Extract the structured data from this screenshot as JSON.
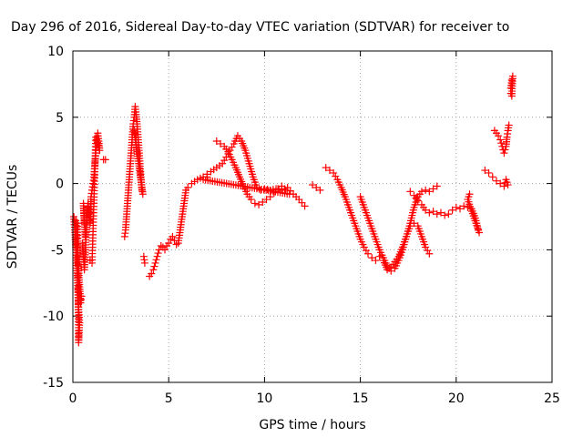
{
  "chart_data": {
    "type": "scatter",
    "title": "Day 296 of 2016, Sidereal Day-to-day VTEC variation (SDTVAR) for receiver to",
    "xlabel": "GPS time / hours",
    "ylabel": "SDTVAR / TECUs",
    "xlim": [
      0,
      25
    ],
    "ylim": [
      -15,
      10
    ],
    "xticks": [
      0,
      5,
      10,
      15,
      20,
      25
    ],
    "yticks": [
      -15,
      -10,
      -5,
      0,
      5,
      10
    ],
    "grid": true,
    "marker": "+",
    "color": "#ff0000",
    "series": [
      {
        "points": [
          [
            0.05,
            -2.5
          ],
          [
            0.1,
            -3.5
          ],
          [
            0.15,
            -4.8
          ],
          [
            0.2,
            -6
          ],
          [
            0.25,
            -7.5
          ],
          [
            0.3,
            -9.5
          ],
          [
            0.35,
            -10.5
          ],
          [
            0.3,
            -12
          ],
          [
            0.25,
            -3
          ],
          [
            0.15,
            -2.8
          ],
          [
            0.4,
            -9
          ],
          [
            0.45,
            -8.5
          ]
        ]
      },
      {
        "points": [
          [
            0.5,
            -4.5
          ],
          [
            0.55,
            -5.5
          ],
          [
            0.6,
            -6.5
          ],
          [
            0.65,
            -5
          ],
          [
            0.7,
            -3.5
          ],
          [
            0.75,
            -2
          ],
          [
            0.8,
            -1.5
          ],
          [
            0.65,
            -4
          ],
          [
            0.55,
            -1.5
          ],
          [
            0.6,
            -3
          ]
        ]
      },
      {
        "points": [
          [
            0.8,
            -1.8
          ],
          [
            0.85,
            -2.5
          ],
          [
            0.9,
            -3
          ],
          [
            0.95,
            -1
          ],
          [
            1.0,
            -0.5
          ],
          [
            1.05,
            0
          ],
          [
            1.1,
            0.5
          ],
          [
            1.15,
            1.5
          ],
          [
            1.2,
            2.5
          ],
          [
            1.25,
            3
          ],
          [
            1.3,
            3.8
          ],
          [
            1.35,
            3.2
          ],
          [
            1.4,
            2.5
          ],
          [
            1.2,
            3.5
          ],
          [
            1.0,
            -6
          ],
          [
            0.9,
            -5.8
          ]
        ]
      },
      {
        "points": [
          [
            1.7,
            1.8
          ],
          [
            1.6,
            1.8
          ]
        ]
      },
      {
        "points": [
          [
            2.7,
            -4
          ],
          [
            2.75,
            -3.5
          ],
          [
            2.8,
            -2.5
          ],
          [
            2.85,
            -1.5
          ],
          [
            2.9,
            -0.5
          ],
          [
            2.95,
            0.5
          ],
          [
            3.0,
            1.5
          ],
          [
            3.05,
            2.5
          ],
          [
            3.1,
            3.5
          ],
          [
            3.15,
            4.5
          ],
          [
            3.2,
            5
          ],
          [
            3.25,
            5.8
          ],
          [
            3.3,
            5.2
          ],
          [
            3.35,
            4.5
          ],
          [
            3.4,
            3.5
          ],
          [
            3.45,
            2.5
          ],
          [
            3.5,
            1.5
          ],
          [
            3.55,
            0.5
          ],
          [
            3.6,
            -0.5
          ],
          [
            3.65,
            -0.8
          ],
          [
            3.2,
            4
          ],
          [
            3.3,
            3.5
          ]
        ]
      },
      {
        "points": [
          [
            3.7,
            -5.5
          ],
          [
            3.75,
            -6
          ]
        ]
      },
      {
        "points": [
          [
            4.0,
            -7
          ],
          [
            4.1,
            -6.8
          ],
          [
            4.2,
            -6.5
          ],
          [
            4.3,
            -6
          ],
          [
            4.4,
            -5.5
          ],
          [
            4.5,
            -5
          ],
          [
            4.6,
            -4.7
          ],
          [
            4.7,
            -4.8
          ],
          [
            4.8,
            -5
          ],
          [
            4.9,
            -4.7
          ],
          [
            5.0,
            -4.5
          ],
          [
            5.1,
            -4.2
          ],
          [
            5.2,
            -4
          ],
          [
            5.3,
            -4.3
          ],
          [
            5.4,
            -4.6
          ],
          [
            5.5,
            -4.5
          ],
          [
            5.6,
            -3.5
          ],
          [
            5.7,
            -2.5
          ],
          [
            5.8,
            -1.5
          ],
          [
            5.9,
            -0.5
          ],
          [
            6.0,
            -0.3
          ],
          [
            6.2,
            0
          ],
          [
            6.5,
            0.3
          ],
          [
            6.8,
            0.5
          ],
          [
            7.0,
            0.7
          ],
          [
            7.2,
            0.9
          ],
          [
            7.5,
            1.2
          ],
          [
            7.8,
            1.5
          ],
          [
            8.0,
            2
          ],
          [
            8.2,
            2.5
          ],
          [
            8.4,
            3
          ],
          [
            8.6,
            3.6
          ],
          [
            8.8,
            3.2
          ],
          [
            9.0,
            2.5
          ],
          [
            9.2,
            1.5
          ],
          [
            9.4,
            0.5
          ],
          [
            9.6,
            -0.3
          ],
          [
            9.8,
            -0.5
          ],
          [
            10.0,
            -0.4
          ],
          [
            10.3,
            -0.5
          ],
          [
            10.6,
            -0.4
          ],
          [
            10.9,
            -0.5
          ],
          [
            11.2,
            -0.3
          ],
          [
            11.5,
            -0.8
          ],
          [
            11.8,
            -1.2
          ],
          [
            12.1,
            -1.7
          ]
        ]
      },
      {
        "points": [
          [
            7.5,
            3.2
          ],
          [
            7.7,
            3.0
          ],
          [
            7.9,
            2.8
          ],
          [
            8.1,
            2.4
          ],
          [
            8.3,
            1.8
          ],
          [
            8.5,
            1.2
          ],
          [
            8.7,
            0.5
          ],
          [
            8.9,
            -0.2
          ],
          [
            9.1,
            -0.8
          ],
          [
            9.3,
            -1.2
          ],
          [
            9.5,
            -1.5
          ],
          [
            9.7,
            -1.6
          ],
          [
            9.9,
            -1.4
          ],
          [
            10.1,
            -1.2
          ],
          [
            10.3,
            -1.0
          ],
          [
            10.5,
            -0.7
          ],
          [
            10.7,
            -0.4
          ],
          [
            10.9,
            -0.2
          ],
          [
            11.1,
            -0.5
          ],
          [
            11.3,
            -0.8
          ],
          [
            6.8,
            0.3
          ],
          [
            7.0,
            0.5
          ]
        ]
      },
      {
        "points": [
          [
            12.5,
            -0.1
          ],
          [
            12.7,
            -0.3
          ],
          [
            12.9,
            -0.5
          ]
        ]
      },
      {
        "points": [
          [
            13.2,
            1.2
          ],
          [
            13.4,
            1.0
          ],
          [
            13.6,
            0.8
          ],
          [
            13.8,
            0.3
          ],
          [
            14.0,
            -0.3
          ],
          [
            14.2,
            -1
          ],
          [
            14.4,
            -1.8
          ],
          [
            14.6,
            -2.6
          ],
          [
            14.8,
            -3.4
          ],
          [
            15.0,
            -4.2
          ],
          [
            15.2,
            -4.8
          ],
          [
            15.4,
            -5.3
          ],
          [
            15.6,
            -5.6
          ],
          [
            15.8,
            -5.8
          ],
          [
            16.0,
            -5.5
          ],
          [
            16.2,
            -5.8
          ],
          [
            16.4,
            -6.5
          ],
          [
            16.6,
            -6.3
          ],
          [
            16.8,
            -5.9
          ],
          [
            17.0,
            -5.5
          ],
          [
            17.2,
            -4.8
          ],
          [
            17.4,
            -4.0
          ],
          [
            17.6,
            -3.2
          ],
          [
            17.8,
            -3.0
          ],
          [
            18.0,
            -3.2
          ],
          [
            18.2,
            -4.0
          ],
          [
            18.4,
            -4.8
          ],
          [
            18.6,
            -5.3
          ]
        ]
      },
      {
        "points": [
          [
            15.0,
            -1
          ],
          [
            15.2,
            -1.8
          ],
          [
            15.4,
            -2.6
          ],
          [
            15.6,
            -3.4
          ],
          [
            15.8,
            -4.2
          ],
          [
            16.0,
            -5.0
          ],
          [
            16.2,
            -5.6
          ],
          [
            16.4,
            -6.2
          ],
          [
            16.6,
            -6.6
          ],
          [
            16.8,
            -6.4
          ],
          [
            17.0,
            -5.8
          ],
          [
            17.2,
            -5.0
          ],
          [
            17.4,
            -4.0
          ],
          [
            17.6,
            -3.0
          ],
          [
            17.8,
            -1.8
          ],
          [
            18.0,
            -1.0
          ],
          [
            18.2,
            -0.6
          ],
          [
            18.4,
            -0.5
          ],
          [
            18.6,
            -0.6
          ],
          [
            18.8,
            -0.4
          ],
          [
            19.0,
            -0.2
          ]
        ]
      },
      {
        "points": [
          [
            17.6,
            -0.6
          ],
          [
            17.8,
            -0.9
          ],
          [
            18.0,
            -1.3
          ],
          [
            18.2,
            -1.6
          ],
          [
            18.4,
            -2.0
          ],
          [
            18.6,
            -2.2
          ],
          [
            18.8,
            -2.1
          ],
          [
            19.0,
            -2.3
          ],
          [
            19.2,
            -2.2
          ],
          [
            19.4,
            -2.4
          ],
          [
            19.6,
            -2.3
          ],
          [
            19.8,
            -2.0
          ],
          [
            20.0,
            -1.8
          ],
          [
            20.2,
            -1.9
          ],
          [
            20.4,
            -1.7
          ],
          [
            20.6,
            -1.8
          ],
          [
            20.8,
            -1.9
          ],
          [
            21.0,
            -2.6
          ],
          [
            21.1,
            -3.2
          ],
          [
            21.2,
            -3.7
          ],
          [
            20.6,
            -1.2
          ],
          [
            20.7,
            -0.8
          ]
        ]
      },
      {
        "points": [
          [
            21.5,
            1.0
          ],
          [
            21.7,
            0.8
          ],
          [
            21.9,
            0.5
          ],
          [
            22.1,
            0.2
          ],
          [
            22.3,
            0
          ],
          [
            22.5,
            -0.2
          ],
          [
            22.6,
            0.3
          ],
          [
            22.7,
            -0.1
          ]
        ]
      },
      {
        "points": [
          [
            22.0,
            4.0
          ],
          [
            22.1,
            3.8
          ],
          [
            22.2,
            3.6
          ],
          [
            22.3,
            3.3
          ],
          [
            22.4,
            2.8
          ],
          [
            22.5,
            2.3
          ],
          [
            22.6,
            2.8
          ],
          [
            22.65,
            3.5
          ],
          [
            22.7,
            4.0
          ],
          [
            22.75,
            4.4
          ]
        ]
      },
      {
        "points": [
          [
            22.85,
            7.2
          ],
          [
            22.9,
            7.8
          ],
          [
            22.95,
            8.1
          ],
          [
            22.9,
            6.6
          ],
          [
            22.85,
            6.8
          ]
        ]
      }
    ]
  }
}
